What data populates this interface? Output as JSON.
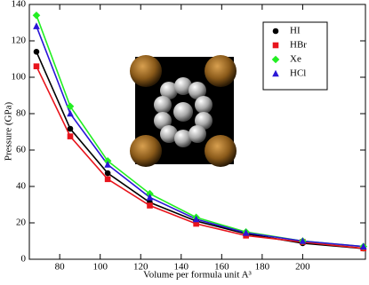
{
  "chart_data": {
    "type": "line",
    "x_label": "Volume per formula unit A³",
    "y_label": "Pressure (GPa)",
    "x": [
      68.5,
      85.2,
      103.7,
      124.5,
      147.4,
      172,
      200,
      230
    ],
    "xlim": [
      65,
      231
    ],
    "xticks": [
      80,
      100,
      120,
      140,
      160,
      180,
      200
    ],
    "ylim": [
      0,
      140
    ],
    "yticks": [
      0,
      20,
      40,
      60,
      80,
      100,
      120,
      140
    ],
    "legend": "upper right",
    "series": [
      {
        "name": "HI",
        "color": "#000000",
        "marker": "circle",
        "values": [
          114,
          71.7,
          47.3,
          31.2,
          21,
          14,
          8.8,
          5.9
        ]
      },
      {
        "name": "HBr",
        "color": "#e8141c",
        "marker": "square",
        "values": [
          106,
          67.5,
          44,
          29.5,
          19.5,
          13,
          9.5,
          6
        ]
      },
      {
        "name": "Xe",
        "color": "#22ee22",
        "marker": "diamond",
        "values": [
          134,
          84,
          54,
          36,
          23,
          15,
          10,
          7
        ]
      },
      {
        "name": "HCl",
        "color": "#2a16d6",
        "marker": "triangle",
        "values": [
          128,
          80,
          52,
          34,
          22,
          14.5,
          10,
          7
        ]
      }
    ]
  }
}
